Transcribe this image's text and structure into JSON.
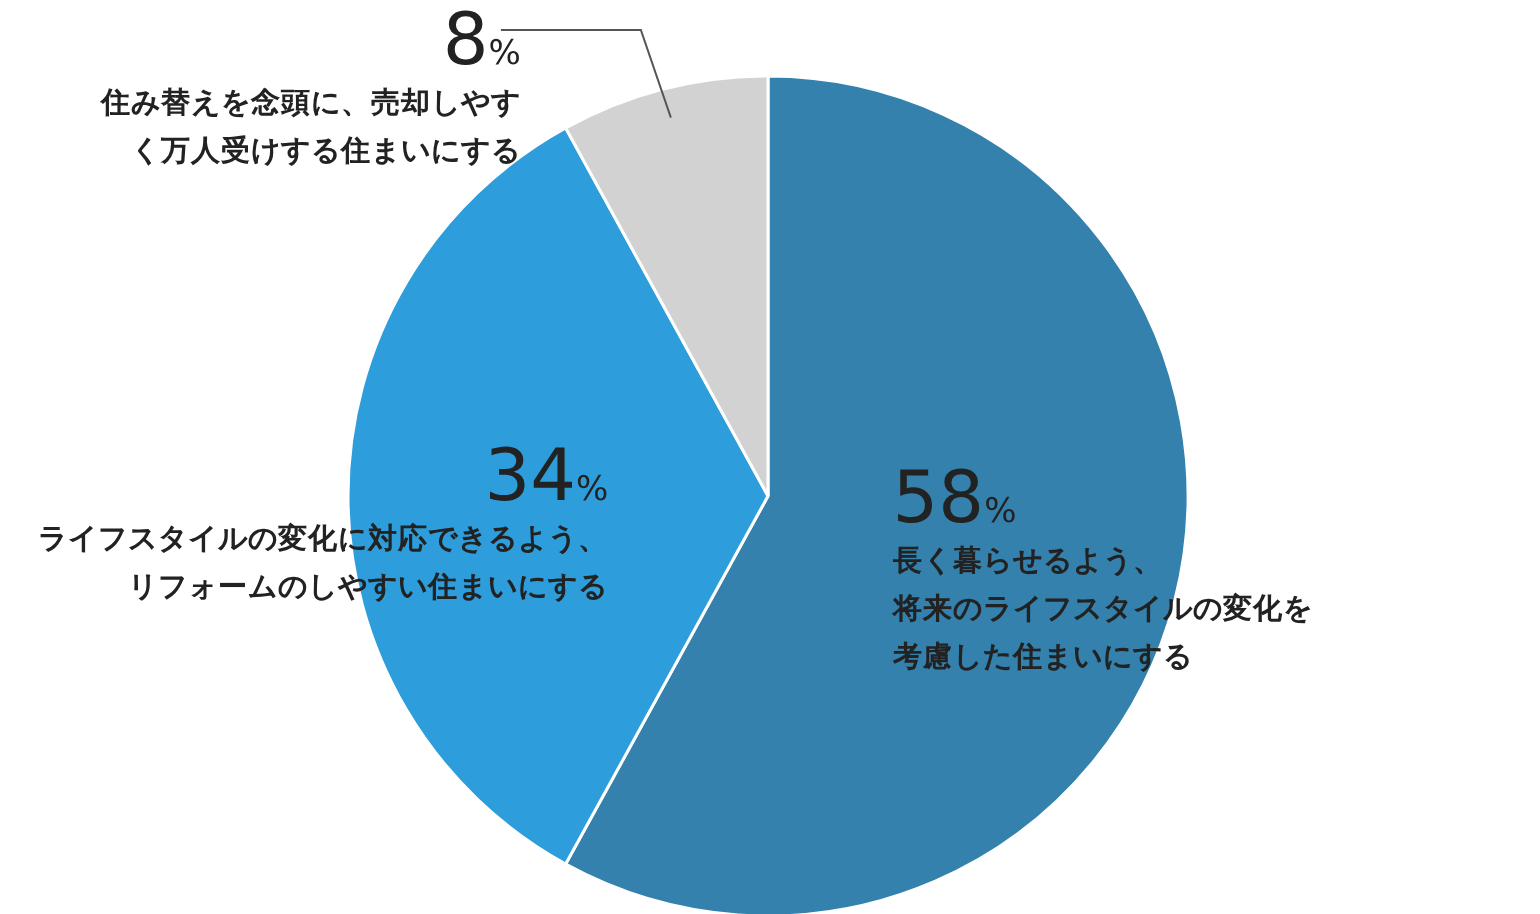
{
  "chart_data": {
    "type": "pie",
    "categories": [
      "長く暮らせるよう、将来のライフスタイルの変化を考慮した住まいにする",
      "ライフスタイルの変化に対応できるよう、リフォームのしやすい住まいにする",
      "住み替えを念頭に、売却しやすく万人受けする住まいにする"
    ],
    "values": [
      58,
      34,
      8
    ],
    "colors": [
      "#3481ad",
      "#2d9edb",
      "#d2d2d2"
    ],
    "value_labels": [
      "58%",
      "34%",
      "8%"
    ]
  }
}
